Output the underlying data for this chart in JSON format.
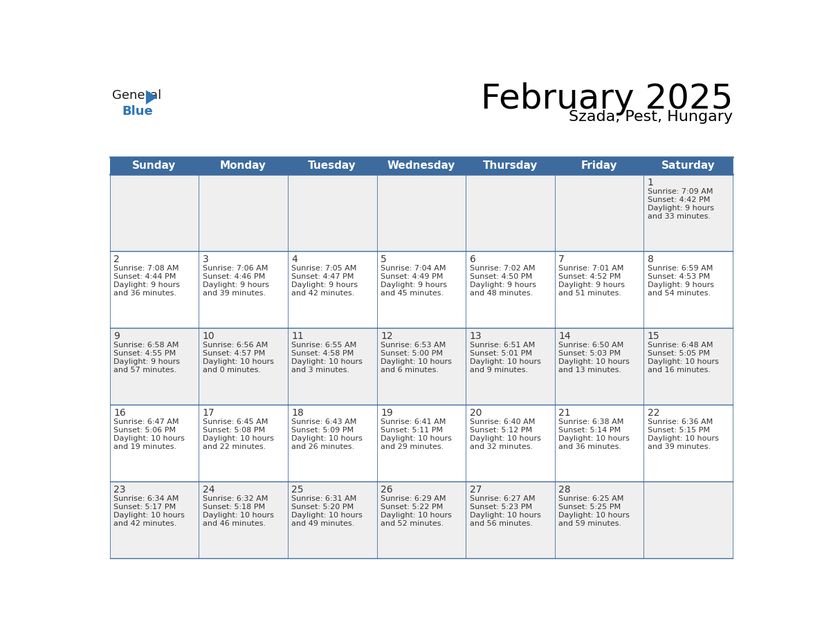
{
  "title": "February 2025",
  "subtitle": "Szada, Pest, Hungary",
  "header_bg": "#3d6b9e",
  "header_text_color": "#ffffff",
  "cell_bg_even": "#efefef",
  "cell_bg_odd": "#ffffff",
  "border_color": "#3d6b9e",
  "text_color": "#333333",
  "days_of_week": [
    "Sunday",
    "Monday",
    "Tuesday",
    "Wednesday",
    "Thursday",
    "Friday",
    "Saturday"
  ],
  "calendar_data": [
    [
      null,
      null,
      null,
      null,
      null,
      null,
      {
        "day": "1",
        "sunrise": "7:09 AM",
        "sunset": "4:42 PM",
        "daylight": "9 hours",
        "daylight2": "and 33 minutes."
      }
    ],
    [
      {
        "day": "2",
        "sunrise": "7:08 AM",
        "sunset": "4:44 PM",
        "daylight": "9 hours",
        "daylight2": "and 36 minutes."
      },
      {
        "day": "3",
        "sunrise": "7:06 AM",
        "sunset": "4:46 PM",
        "daylight": "9 hours",
        "daylight2": "and 39 minutes."
      },
      {
        "day": "4",
        "sunrise": "7:05 AM",
        "sunset": "4:47 PM",
        "daylight": "9 hours",
        "daylight2": "and 42 minutes."
      },
      {
        "day": "5",
        "sunrise": "7:04 AM",
        "sunset": "4:49 PM",
        "daylight": "9 hours",
        "daylight2": "and 45 minutes."
      },
      {
        "day": "6",
        "sunrise": "7:02 AM",
        "sunset": "4:50 PM",
        "daylight": "9 hours",
        "daylight2": "and 48 minutes."
      },
      {
        "day": "7",
        "sunrise": "7:01 AM",
        "sunset": "4:52 PM",
        "daylight": "9 hours",
        "daylight2": "and 51 minutes."
      },
      {
        "day": "8",
        "sunrise": "6:59 AM",
        "sunset": "4:53 PM",
        "daylight": "9 hours",
        "daylight2": "and 54 minutes."
      }
    ],
    [
      {
        "day": "9",
        "sunrise": "6:58 AM",
        "sunset": "4:55 PM",
        "daylight": "9 hours",
        "daylight2": "and 57 minutes."
      },
      {
        "day": "10",
        "sunrise": "6:56 AM",
        "sunset": "4:57 PM",
        "daylight": "10 hours",
        "daylight2": "and 0 minutes."
      },
      {
        "day": "11",
        "sunrise": "6:55 AM",
        "sunset": "4:58 PM",
        "daylight": "10 hours",
        "daylight2": "and 3 minutes."
      },
      {
        "day": "12",
        "sunrise": "6:53 AM",
        "sunset": "5:00 PM",
        "daylight": "10 hours",
        "daylight2": "and 6 minutes."
      },
      {
        "day": "13",
        "sunrise": "6:51 AM",
        "sunset": "5:01 PM",
        "daylight": "10 hours",
        "daylight2": "and 9 minutes."
      },
      {
        "day": "14",
        "sunrise": "6:50 AM",
        "sunset": "5:03 PM",
        "daylight": "10 hours",
        "daylight2": "and 13 minutes."
      },
      {
        "day": "15",
        "sunrise": "6:48 AM",
        "sunset": "5:05 PM",
        "daylight": "10 hours",
        "daylight2": "and 16 minutes."
      }
    ],
    [
      {
        "day": "16",
        "sunrise": "6:47 AM",
        "sunset": "5:06 PM",
        "daylight": "10 hours",
        "daylight2": "and 19 minutes."
      },
      {
        "day": "17",
        "sunrise": "6:45 AM",
        "sunset": "5:08 PM",
        "daylight": "10 hours",
        "daylight2": "and 22 minutes."
      },
      {
        "day": "18",
        "sunrise": "6:43 AM",
        "sunset": "5:09 PM",
        "daylight": "10 hours",
        "daylight2": "and 26 minutes."
      },
      {
        "day": "19",
        "sunrise": "6:41 AM",
        "sunset": "5:11 PM",
        "daylight": "10 hours",
        "daylight2": "and 29 minutes."
      },
      {
        "day": "20",
        "sunrise": "6:40 AM",
        "sunset": "5:12 PM",
        "daylight": "10 hours",
        "daylight2": "and 32 minutes."
      },
      {
        "day": "21",
        "sunrise": "6:38 AM",
        "sunset": "5:14 PM",
        "daylight": "10 hours",
        "daylight2": "and 36 minutes."
      },
      {
        "day": "22",
        "sunrise": "6:36 AM",
        "sunset": "5:15 PM",
        "daylight": "10 hours",
        "daylight2": "and 39 minutes."
      }
    ],
    [
      {
        "day": "23",
        "sunrise": "6:34 AM",
        "sunset": "5:17 PM",
        "daylight": "10 hours",
        "daylight2": "and 42 minutes."
      },
      {
        "day": "24",
        "sunrise": "6:32 AM",
        "sunset": "5:18 PM",
        "daylight": "10 hours",
        "daylight2": "and 46 minutes."
      },
      {
        "day": "25",
        "sunrise": "6:31 AM",
        "sunset": "5:20 PM",
        "daylight": "10 hours",
        "daylight2": "and 49 minutes."
      },
      {
        "day": "26",
        "sunrise": "6:29 AM",
        "sunset": "5:22 PM",
        "daylight": "10 hours",
        "daylight2": "and 52 minutes."
      },
      {
        "day": "27",
        "sunrise": "6:27 AM",
        "sunset": "5:23 PM",
        "daylight": "10 hours",
        "daylight2": "and 56 minutes."
      },
      {
        "day": "28",
        "sunrise": "6:25 AM",
        "sunset": "5:25 PM",
        "daylight": "10 hours",
        "daylight2": "and 59 minutes."
      },
      null
    ]
  ],
  "logo_general_color": "#1a1a1a",
  "logo_blue_color": "#2e75b6",
  "logo_triangle_color": "#2e75b6",
  "title_fontsize": 36,
  "subtitle_fontsize": 16,
  "header_fontsize": 11,
  "day_num_fontsize": 10,
  "cell_text_fontsize": 8
}
